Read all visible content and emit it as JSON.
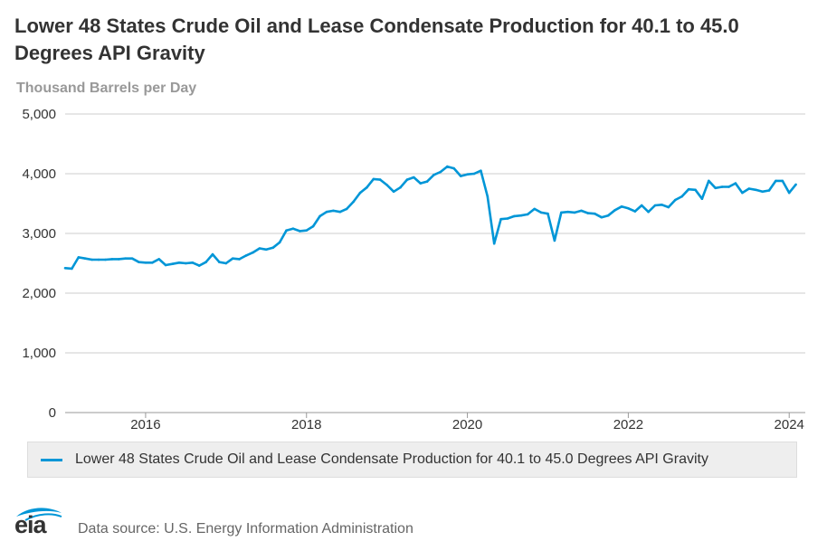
{
  "colors": {
    "series": "#0096d7",
    "grid": "#cccccc",
    "text": "#333333",
    "units": "#999999",
    "logo_blue": "#0096d7"
  },
  "logo": {
    "icon": "eia-logo-icon",
    "text": "eia"
  },
  "source_text": "Data source: U.S. Energy Information Administration",
  "chart_data": {
    "type": "line",
    "title": "Lower 48 States Crude Oil and Lease Condensate Production for 40.1 to 45.0 Degrees API Gravity",
    "ylabel": "Thousand Barrels per Day",
    "xlabel": "",
    "ylim": [
      0,
      5000
    ],
    "xlim": [
      2015.0,
      2024.2
    ],
    "yticks": [
      {
        "value": 0,
        "label": "0"
      },
      {
        "value": 1000,
        "label": "1,000"
      },
      {
        "value": 2000,
        "label": "2,000"
      },
      {
        "value": 3000,
        "label": "3,000"
      },
      {
        "value": 4000,
        "label": "4,000"
      },
      {
        "value": 5000,
        "label": "5,000"
      }
    ],
    "xticks": [
      {
        "value": 2016,
        "label": "2016"
      },
      {
        "value": 2018,
        "label": "2018"
      },
      {
        "value": 2020,
        "label": "2020"
      },
      {
        "value": 2022,
        "label": "2022"
      },
      {
        "value": 2024,
        "label": "2024"
      }
    ],
    "grid": true,
    "legend_position": "bottom",
    "series": [
      {
        "name": "Lower 48 States Crude Oil and Lease Condensate Production for 40.1 to 45.0 Degrees API Gravity",
        "x_start": 2015.0,
        "x_step_months": 1,
        "values": [
          2420,
          2410,
          2600,
          2580,
          2560,
          2560,
          2560,
          2570,
          2570,
          2580,
          2580,
          2520,
          2510,
          2510,
          2570,
          2470,
          2490,
          2510,
          2500,
          2510,
          2460,
          2520,
          2650,
          2520,
          2500,
          2580,
          2570,
          2630,
          2680,
          2750,
          2730,
          2760,
          2850,
          3050,
          3080,
          3040,
          3050,
          3120,
          3290,
          3360,
          3380,
          3360,
          3410,
          3530,
          3680,
          3770,
          3910,
          3900,
          3810,
          3700,
          3770,
          3900,
          3940,
          3840,
          3870,
          3980,
          4030,
          4120,
          4090,
          3960,
          3990,
          4000,
          4050,
          3620,
          2830,
          3240,
          3250,
          3290,
          3300,
          3320,
          3410,
          3350,
          3330,
          2880,
          3350,
          3360,
          3350,
          3380,
          3340,
          3330,
          3270,
          3300,
          3390,
          3450,
          3420,
          3370,
          3470,
          3360,
          3470,
          3480,
          3440,
          3560,
          3620,
          3740,
          3730,
          3580,
          3880,
          3760,
          3780,
          3780,
          3840,
          3680,
          3750,
          3730,
          3700,
          3720,
          3880,
          3880,
          3680,
          3820
        ]
      }
    ]
  }
}
